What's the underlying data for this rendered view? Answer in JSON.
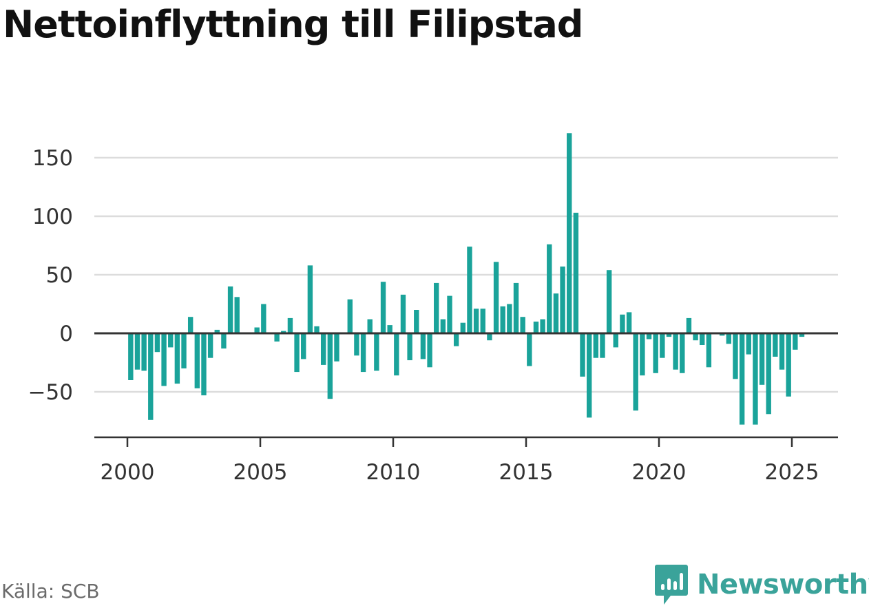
{
  "header": {
    "title": "Nettoinflyttning till Filipstad"
  },
  "footer": {
    "source": "Källa: SCB",
    "brand": "Newsworthy"
  },
  "colors": {
    "bar": "#1aa39a",
    "grid": "#dcdcdc",
    "axis": "#333333",
    "brand": "#3aa39a"
  },
  "chart_data": {
    "type": "bar",
    "title": "Nettoinflyttning till Filipstad",
    "xlabel": "",
    "ylabel": "",
    "xlim": [
      1999.25,
      2027.25
    ],
    "ylim": [
      -88,
      175
    ],
    "yticks": [
      -50,
      0,
      50,
      100,
      150
    ],
    "ytick_labels": [
      "−50",
      "0",
      "50",
      "100",
      "150"
    ],
    "xticks": [
      2000,
      2005,
      2010,
      2015,
      2020,
      2025
    ],
    "xtick_labels": [
      "2000",
      "2005",
      "2010",
      "2015",
      "2020",
      "2025"
    ],
    "grid": true,
    "legend": "none",
    "series": [
      {
        "x": [
          2000.125,
          2000.375,
          2000.625,
          2000.875,
          2001.125,
          2001.375,
          2001.625,
          2001.875,
          2002.125,
          2002.375,
          2002.625,
          2002.875,
          2003.125,
          2003.375,
          2003.625,
          2003.875,
          2004.125,
          2004.375,
          2004.625,
          2004.875,
          2005.125,
          2005.375,
          2005.625,
          2005.875,
          2006.125,
          2006.375,
          2006.625,
          2006.875,
          2007.125,
          2007.375,
          2007.625,
          2007.875,
          2008.125,
          2008.375,
          2008.625,
          2008.875,
          2009.125,
          2009.375,
          2009.625,
          2009.875,
          2010.125,
          2010.375,
          2010.625,
          2010.875,
          2011.125,
          2011.375,
          2011.625,
          2011.875,
          2012.125,
          2012.375,
          2012.625,
          2012.875,
          2013.125,
          2013.375,
          2013.625,
          2013.875,
          2014.125,
          2014.375,
          2014.625,
          2014.875,
          2015.125,
          2015.375,
          2015.625,
          2015.875,
          2016.125,
          2016.375,
          2016.625,
          2016.875,
          2017.125,
          2017.375,
          2017.625,
          2017.875,
          2018.125,
          2018.375,
          2018.625,
          2018.875,
          2019.125,
          2019.375,
          2019.625,
          2019.875,
          2020.125,
          2020.375,
          2020.625,
          2020.875,
          2021.125,
          2021.375,
          2021.625,
          2021.875,
          2022.125,
          2022.375,
          2022.625,
          2022.875,
          2023.125,
          2023.375,
          2023.625,
          2023.875,
          2024.125,
          2024.375,
          2024.625,
          2024.875,
          2025.125,
          2025.375
        ],
        "values": [
          -40,
          -31,
          -32,
          -74,
          -16,
          -45,
          -12,
          -43,
          -30,
          14,
          -47,
          -53,
          -21,
          3,
          -13,
          40,
          31,
          0,
          0,
          5,
          25,
          0,
          -7,
          2,
          13,
          -33,
          -22,
          58,
          6,
          -27,
          -56,
          -24,
          0,
          29,
          -19,
          -33,
          12,
          -32,
          44,
          7,
          -36,
          33,
          -23,
          20,
          -22,
          -29,
          43,
          12,
          32,
          -11,
          9,
          74,
          21,
          21,
          -6,
          61,
          23,
          25,
          43,
          14,
          -28,
          10,
          12,
          76,
          34,
          57,
          171,
          103,
          -37,
          -72,
          -21,
          -21,
          54,
          -12,
          16,
          18,
          -66,
          -36,
          -5,
          -34,
          -21,
          -3,
          -31,
          -34,
          13,
          -6,
          -10,
          -29,
          0,
          -2,
          -9,
          -39,
          -78,
          -18,
          -78,
          -44,
          -69,
          -20,
          -31,
          -54,
          -14,
          -3
        ]
      }
    ]
  }
}
